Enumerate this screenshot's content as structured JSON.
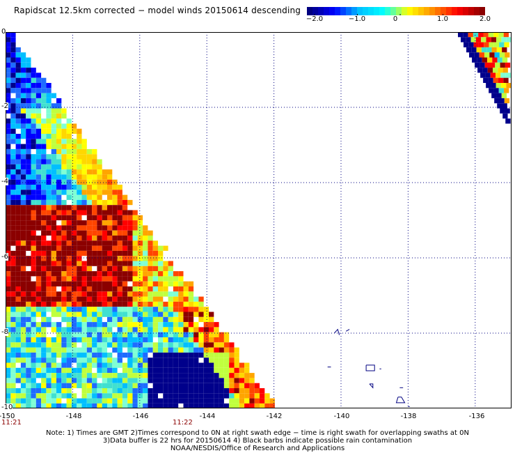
{
  "title": "Rapidscat 12.5km corrected − model winds 20150614 descending",
  "colorbar": {
    "ticks": [
      "−2.0",
      "−1.0",
      "0",
      "1.0",
      "2.0"
    ],
    "colors": [
      "#000080",
      "#0000ff",
      "#00bfff",
      "#00ffff",
      "#ffff00",
      "#ff8c00",
      "#ff0000",
      "#8b0000"
    ]
  },
  "map": {
    "lon_range": [
      -150,
      -135
    ],
    "lat_range": [
      -10,
      0
    ],
    "x_ticks": [
      "-150",
      "-148",
      "-146",
      "-144",
      "-142",
      "-140",
      "-138",
      "-136"
    ],
    "y_ticks": [
      "0",
      "-2",
      "-4",
      "-6",
      "-8",
      "-10"
    ],
    "grid": "dotted",
    "background": "#ffffff",
    "coast_color": "#000080"
  },
  "times": {
    "left": "11:21",
    "mid": "11:22"
  },
  "footer": {
    "line1": "Note: 1) Times are GMT 2)Times correspond to 0N at right swath edge − time is right swath for overlapping swaths at 0N",
    "line2": "3)Data buffer is 22 hrs for 20150614 4) Black barbs indicate possible rain contamination",
    "line3": "NOAA/NESDIS/Office of Research and Applications"
  }
}
